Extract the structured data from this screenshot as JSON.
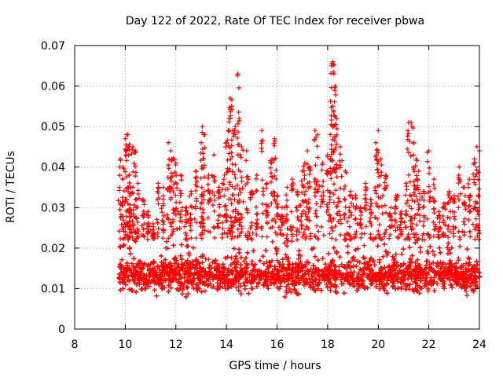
{
  "chart_data": {
    "type": "scatter",
    "title": "Day 122 of 2022, Rate Of TEC Index for receiver pbwa",
    "xlabel": "GPS time / hours",
    "ylabel": "ROTI / TECUs",
    "xlim": [
      8,
      24
    ],
    "ylim": [
      0,
      0.07
    ],
    "x_ticks": [
      8,
      10,
      12,
      14,
      16,
      18,
      20,
      22,
      24
    ],
    "x_tick_labels": [
      "8",
      "10",
      "12",
      "14",
      "16",
      "18",
      "20",
      "22",
      "24"
    ],
    "y_ticks": [
      0,
      0.01,
      0.02,
      0.03,
      0.04,
      0.05,
      0.06,
      0.07
    ],
    "y_tick_labels": [
      "0",
      "0.01",
      "0.02",
      "0.03",
      "0.04",
      "0.05",
      "0.06",
      "0.07"
    ],
    "grid": true,
    "marker": "plus",
    "series": [
      {
        "name": "ROTI",
        "color": "#ff0000",
        "points": [
          [
            9.8,
            0.042
          ],
          [
            9.9,
            0.04
          ],
          [
            10.0,
            0.047
          ],
          [
            10.05,
            0.048
          ],
          [
            10.1,
            0.048
          ],
          [
            10.15,
            0.038
          ],
          [
            10.2,
            0.035
          ],
          [
            10.3,
            0.045
          ],
          [
            10.4,
            0.044
          ],
          [
            10.5,
            0.036
          ],
          [
            10.7,
            0.032
          ],
          [
            10.9,
            0.029
          ],
          [
            11.1,
            0.026
          ],
          [
            11.3,
            0.036
          ],
          [
            11.5,
            0.035
          ],
          [
            11.7,
            0.046
          ],
          [
            11.8,
            0.044
          ],
          [
            11.9,
            0.042
          ],
          [
            12.0,
            0.041
          ],
          [
            12.2,
            0.038
          ],
          [
            12.4,
            0.03
          ],
          [
            12.6,
            0.034
          ],
          [
            12.8,
            0.039
          ],
          [
            13.0,
            0.046
          ],
          [
            13.05,
            0.05
          ],
          [
            13.1,
            0.048
          ],
          [
            13.3,
            0.038
          ],
          [
            13.5,
            0.043
          ],
          [
            13.7,
            0.035
          ],
          [
            13.9,
            0.037
          ],
          [
            14.0,
            0.046
          ],
          [
            14.1,
            0.052
          ],
          [
            14.15,
            0.057
          ],
          [
            14.2,
            0.055
          ],
          [
            14.25,
            0.049
          ],
          [
            14.35,
            0.05
          ],
          [
            14.45,
            0.063
          ],
          [
            14.5,
            0.052
          ],
          [
            14.6,
            0.045
          ],
          [
            14.8,
            0.044
          ],
          [
            15.0,
            0.034
          ],
          [
            15.2,
            0.038
          ],
          [
            15.4,
            0.049
          ],
          [
            15.6,
            0.036
          ],
          [
            15.8,
            0.042
          ],
          [
            15.9,
            0.047
          ],
          [
            16.0,
            0.033
          ],
          [
            16.2,
            0.03
          ],
          [
            16.4,
            0.035
          ],
          [
            16.6,
            0.037
          ],
          [
            16.8,
            0.034
          ],
          [
            17.0,
            0.039
          ],
          [
            17.1,
            0.041
          ],
          [
            17.2,
            0.044
          ],
          [
            17.3,
            0.04
          ],
          [
            17.5,
            0.049
          ],
          [
            17.6,
            0.048
          ],
          [
            17.8,
            0.041
          ],
          [
            18.0,
            0.043
          ],
          [
            18.1,
            0.048
          ],
          [
            18.15,
            0.065
          ],
          [
            18.2,
            0.066
          ],
          [
            18.25,
            0.063
          ],
          [
            18.3,
            0.06
          ],
          [
            18.35,
            0.052
          ],
          [
            18.5,
            0.045
          ],
          [
            18.7,
            0.039
          ],
          [
            18.9,
            0.034
          ],
          [
            19.1,
            0.033
          ],
          [
            19.3,
            0.03
          ],
          [
            19.5,
            0.036
          ],
          [
            19.7,
            0.032
          ],
          [
            19.9,
            0.046
          ],
          [
            20.0,
            0.049
          ],
          [
            20.1,
            0.042
          ],
          [
            20.3,
            0.038
          ],
          [
            20.5,
            0.03
          ],
          [
            20.7,
            0.033
          ],
          [
            20.9,
            0.029
          ],
          [
            21.1,
            0.036
          ],
          [
            21.2,
            0.051
          ],
          [
            21.3,
            0.051
          ],
          [
            21.4,
            0.046
          ],
          [
            21.5,
            0.042
          ],
          [
            21.6,
            0.039
          ],
          [
            21.8,
            0.034
          ],
          [
            22.0,
            0.044
          ],
          [
            22.2,
            0.037
          ],
          [
            22.4,
            0.029
          ],
          [
            22.6,
            0.031
          ],
          [
            22.8,
            0.034
          ],
          [
            23.0,
            0.033
          ],
          [
            23.2,
            0.04
          ],
          [
            23.4,
            0.035
          ],
          [
            23.6,
            0.037
          ],
          [
            23.8,
            0.042
          ],
          [
            23.9,
            0.045
          ],
          [
            24.0,
            0.044
          ]
        ],
        "bulk_band": {
          "x_range": [
            9.75,
            24.0
          ],
          "y_range": [
            0.005,
            0.028
          ],
          "typical": 0.013,
          "min": 0.003
        }
      }
    ]
  }
}
